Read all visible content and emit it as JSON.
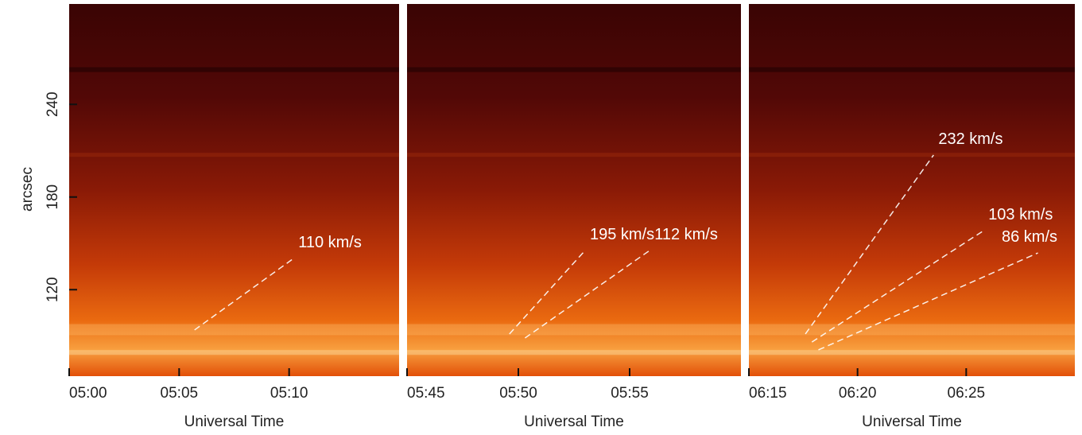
{
  "chart_data": [
    {
      "type": "time-distance",
      "ylabel": "arcsec",
      "xlabel": "Universal Time",
      "xlim": [
        300,
        315
      ],
      "xticks": [
        {
          "value": 300,
          "label": "05:00"
        },
        {
          "value": 305,
          "label": "05:05"
        },
        {
          "value": 310,
          "label": "05:10"
        }
      ],
      "ylim": [
        64,
        305
      ],
      "yticks": [
        120,
        180,
        240
      ],
      "annotations": [
        {
          "text": "110 km/s",
          "x": [
            305.7,
            310.2
          ],
          "y": [
            93.9,
            140.2
          ]
        }
      ]
    },
    {
      "type": "time-distance",
      "xlabel": "Universal Time",
      "xlim": [
        345,
        360
      ],
      "xticks": [
        {
          "value": 345,
          "label": "05:45"
        },
        {
          "value": 350,
          "label": "05:50"
        },
        {
          "value": 355,
          "label": "05:55"
        }
      ],
      "ylim": [
        64,
        305
      ],
      "annotations": [
        {
          "text": "195 km/s",
          "x": [
            349.6,
            353.0
          ],
          "y": [
            91.3,
            145.4
          ]
        },
        {
          "text": "112 km/s",
          "x": [
            350.3,
            355.9
          ],
          "y": [
            88.7,
            145.4
          ]
        }
      ]
    },
    {
      "type": "time-distance",
      "xlabel": "Universal Time",
      "xlim": [
        375,
        390
      ],
      "xticks": [
        {
          "value": 375,
          "label": "06:15"
        },
        {
          "value": 380,
          "label": "06:20"
        },
        {
          "value": 385,
          "label": "06:25"
        }
      ],
      "ylim": [
        64,
        305
      ],
      "annotations": [
        {
          "text": "232 km/s",
          "x": [
            377.6,
            383.5
          ],
          "y": [
            91.3,
            207.2
          ]
        },
        {
          "text": "103 km/s",
          "x": [
            377.9,
            385.8
          ],
          "y": [
            86.1,
            158.2
          ]
        },
        {
          "text": "86 km/s",
          "x": [
            378.2,
            388.3
          ],
          "y": [
            81.0,
            143.8
          ]
        }
      ]
    }
  ]
}
